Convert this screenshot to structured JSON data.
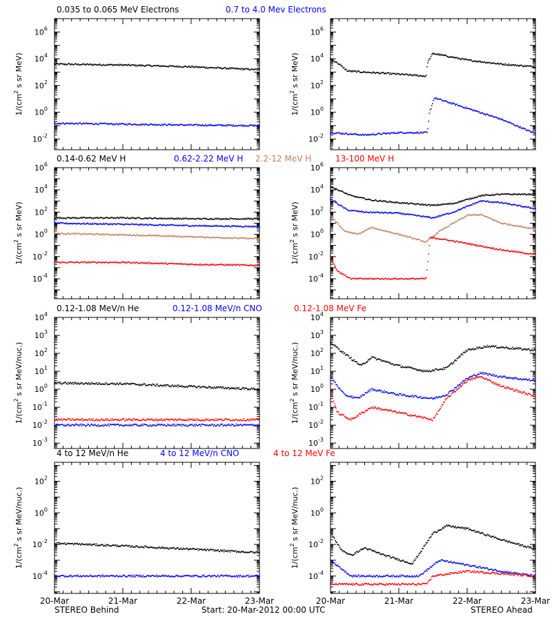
{
  "footer": {
    "left": "STEREO Behind",
    "center": "Start: 20-Mar-2012 00:00 UTC",
    "right": "STEREO Ahead"
  },
  "x_tick_labels": [
    "20-Mar",
    "21-Mar",
    "22-Mar",
    "23-Mar"
  ],
  "colors": {
    "black": "#000000",
    "blue": "#0000ff",
    "brown": "#c08060",
    "red": "#ff0000"
  },
  "rows": [
    {
      "titles": [
        {
          "text": "0.035 to 0.065 MeV Electrons",
          "color": "black"
        },
        {
          "text": "0.7 to 4.0 Mev Electrons",
          "color": "blue"
        }
      ],
      "ylabel_main": "1/(cm",
      "ylabel_sup": "2",
      "ylabel_tail": " s sr MeV)"
    },
    {
      "titles": [
        {
          "text": "0.14-0.62 MeV H",
          "color": "black"
        },
        {
          "text": "0.62-2.22 MeV H",
          "color": "blue"
        },
        {
          "text": "2.2-12 MeV H",
          "color": "brown"
        },
        {
          "text": "13-100 MeV H",
          "color": "red"
        }
      ],
      "ylabel_main": "1/(cm",
      "ylabel_sup": "2",
      "ylabel_tail": " s sr MeV)"
    },
    {
      "titles": [
        {
          "text": "0.12-1.08 MeV/n He",
          "color": "black"
        },
        {
          "text": "0.12-1.08 MeV/n CNO",
          "color": "blue"
        },
        {
          "text": "0.12-1.08 MeV Fe",
          "color": "red"
        }
      ],
      "ylabel_main": "1/(cm",
      "ylabel_sup": "2",
      "ylabel_tail": " s sr MeV/nuc.)"
    },
    {
      "titles": [
        {
          "text": "4 to 12 MeV/n He",
          "color": "black"
        },
        {
          "text": "4 to 12 MeV/n CNO",
          "color": "blue"
        },
        {
          "text": "4 to 12 MeV Fe",
          "color": "red"
        }
      ],
      "ylabel_main": "1/(cm",
      "ylabel_sup": "2",
      "ylabel_tail": " s sr MeV/nuc.)"
    }
  ],
  "chart_data": [
    {
      "type": "scatter",
      "panel": "electrons-behind",
      "y_scale": "log",
      "ylim_log10": [
        -2.8,
        7
      ],
      "y_tick_exponents": [
        -2,
        0,
        2,
        4,
        6
      ],
      "x": [
        "2012-03-20",
        "2012-03-23"
      ],
      "series": [
        {
          "name": "0.035 to 0.065 MeV Electrons",
          "color": "black",
          "points": [
            [
              0,
              4000
            ],
            [
              1,
              3400
            ],
            [
              2,
              2500
            ],
            [
              3,
              1500
            ]
          ]
        },
        {
          "name": "0.7 to 4.0 Mev Electrons",
          "color": "blue",
          "points": [
            [
              0,
              0.15
            ],
            [
              1,
              0.13
            ],
            [
              2,
              0.11
            ],
            [
              3,
              0.1
            ]
          ]
        }
      ]
    },
    {
      "type": "scatter",
      "panel": "electrons-ahead",
      "y_scale": "log",
      "ylim_log10": [
        -2.8,
        7
      ],
      "y_tick_exponents": [
        -2,
        0,
        2,
        4,
        6
      ],
      "x": [
        "2012-03-20",
        "2012-03-23"
      ],
      "series": [
        {
          "name": "0.035 to 0.065 MeV Electrons",
          "color": "black",
          "points": [
            [
              0,
              10000
            ],
            [
              0.1,
              5000
            ],
            [
              0.25,
              1200
            ],
            [
              0.5,
              1000
            ],
            [
              1,
              700
            ],
            [
              1.4,
              500
            ],
            [
              1.42,
              5000
            ],
            [
              1.5,
              25000
            ],
            [
              2,
              8000
            ],
            [
              2.5,
              4000
            ],
            [
              3,
              2500
            ]
          ]
        },
        {
          "name": "0.7 to 4.0 Mev Electrons",
          "color": "blue",
          "points": [
            [
              0,
              0.03
            ],
            [
              0.5,
              0.02
            ],
            [
              1,
              0.03
            ],
            [
              1.42,
              0.03
            ],
            [
              1.45,
              1
            ],
            [
              1.52,
              12
            ],
            [
              2,
              2
            ],
            [
              2.5,
              0.3
            ],
            [
              3,
              0.025
            ]
          ]
        }
      ]
    },
    {
      "type": "scatter",
      "panel": "protons-behind",
      "y_scale": "log",
      "ylim_log10": [
        -5.8,
        6
      ],
      "y_tick_exponents": [
        -4,
        -2,
        0,
        2,
        4,
        6
      ],
      "x": [
        "2012-03-20",
        "2012-03-23"
      ],
      "series": [
        {
          "name": "0.14-0.62 MeV H",
          "color": "black",
          "points": [
            [
              0,
              30
            ],
            [
              1,
              30
            ],
            [
              2,
              25
            ],
            [
              3,
              25
            ]
          ]
        },
        {
          "name": "0.62-2.22 MeV H",
          "color": "blue",
          "points": [
            [
              0,
              10
            ],
            [
              1,
              8
            ],
            [
              2,
              6
            ],
            [
              3,
              5
            ]
          ]
        },
        {
          "name": "2.2-12 MeV H",
          "color": "brown",
          "points": [
            [
              0,
              1.2
            ],
            [
              1,
              0.9
            ],
            [
              2,
              0.6
            ],
            [
              3,
              0.4
            ]
          ]
        },
        {
          "name": "13-100 MeV H",
          "color": "red",
          "points": [
            [
              0,
              0.003
            ],
            [
              1,
              0.003
            ],
            [
              2,
              0.002
            ],
            [
              3,
              0.0016
            ]
          ]
        }
      ]
    },
    {
      "type": "scatter",
      "panel": "protons-ahead",
      "y_scale": "log",
      "ylim_log10": [
        -5.8,
        6
      ],
      "y_tick_exponents": [
        -4,
        -2,
        0,
        2,
        4,
        6
      ],
      "x": [
        "2012-03-20",
        "2012-03-23"
      ],
      "series": [
        {
          "name": "0.14-0.62 MeV H",
          "color": "black",
          "points": [
            [
              0,
              20000
            ],
            [
              0.3,
              3000
            ],
            [
              0.6,
              1200
            ],
            [
              1,
              700
            ],
            [
              1.5,
              400
            ],
            [
              1.8,
              600
            ],
            [
              2.2,
              3000
            ],
            [
              2.5,
              4000
            ],
            [
              3,
              4000
            ]
          ]
        },
        {
          "name": "0.62-2.22 MeV H",
          "color": "blue",
          "points": [
            [
              0,
              1500
            ],
            [
              0.25,
              150
            ],
            [
              0.5,
              100
            ],
            [
              1,
              80
            ],
            [
              1.5,
              30
            ],
            [
              1.8,
              100
            ],
            [
              2.2,
              1000
            ],
            [
              2.5,
              700
            ],
            [
              3,
              200
            ]
          ]
        },
        {
          "name": "2.2-12 MeV H",
          "color": "brown",
          "points": [
            [
              0,
              50
            ],
            [
              0.2,
              2
            ],
            [
              0.4,
              1
            ],
            [
              0.6,
              4
            ],
            [
              1,
              1
            ],
            [
              1.4,
              0.2
            ],
            [
              1.6,
              2
            ],
            [
              2,
              50
            ],
            [
              2.2,
              60
            ],
            [
              2.5,
              10
            ],
            [
              3,
              3
            ]
          ]
        },
        {
          "name": "13-100 MeV H",
          "color": "red",
          "points": [
            [
              0,
              0.01
            ],
            [
              0.1,
              0.0005
            ],
            [
              0.3,
              0.0001
            ],
            [
              0.6,
              0.0001
            ],
            [
              1,
              0.0001
            ],
            [
              1.4,
              0.0001
            ],
            [
              1.46,
              0.5
            ],
            [
              1.6,
              0.4
            ],
            [
              2,
              0.15
            ],
            [
              2.5,
              0.04
            ],
            [
              3,
              0.015
            ]
          ]
        }
      ]
    },
    {
      "type": "scatter",
      "panel": "ions-low-behind",
      "y_scale": "log",
      "ylim_log10": [
        -3.3,
        4
      ],
      "y_tick_exponents": [
        -3,
        -2,
        -1,
        0,
        1,
        2,
        3,
        4
      ],
      "x": [
        "2012-03-20",
        "2012-03-23"
      ],
      "series": [
        {
          "name": "0.12-1.08 MeV/n He",
          "color": "black",
          "points": [
            [
              0,
              2.2
            ],
            [
              1,
              2
            ],
            [
              2,
              1.4
            ],
            [
              3,
              1
            ]
          ]
        },
        {
          "name": "0.12-1.08 MeV/n CNO",
          "color": "blue",
          "points": [
            [
              0,
              0.01
            ],
            [
              3,
              0.01
            ]
          ]
        },
        {
          "name": "0.12-1.08 MeV Fe",
          "color": "red",
          "points": [
            [
              0,
              0.02
            ],
            [
              3,
              0.02
            ]
          ]
        }
      ]
    },
    {
      "type": "scatter",
      "panel": "ions-low-ahead",
      "y_scale": "log",
      "ylim_log10": [
        -3.3,
        4
      ],
      "y_tick_exponents": [
        -3,
        -2,
        -1,
        0,
        1,
        2,
        3,
        4
      ],
      "x": [
        "2012-03-20",
        "2012-03-23"
      ],
      "series": [
        {
          "name": "0.12-1.08 MeV/n He",
          "color": "black",
          "points": [
            [
              0,
              400
            ],
            [
              0.2,
              100
            ],
            [
              0.45,
              20
            ],
            [
              0.6,
              60
            ],
            [
              1,
              20
            ],
            [
              1.4,
              10
            ],
            [
              1.7,
              15
            ],
            [
              2,
              150
            ],
            [
              2.3,
              250
            ],
            [
              3,
              150
            ]
          ]
        },
        {
          "name": "0.12-1.08 MeV/n CNO",
          "color": "blue",
          "points": [
            [
              0,
              5
            ],
            [
              0.2,
              0.5
            ],
            [
              0.4,
              0.3
            ],
            [
              0.6,
              1
            ],
            [
              1,
              0.5
            ],
            [
              1.5,
              0.3
            ],
            [
              1.7,
              0.5
            ],
            [
              2,
              4
            ],
            [
              2.2,
              8
            ],
            [
              2.5,
              5
            ],
            [
              3,
              3
            ]
          ]
        },
        {
          "name": "0.12-1.08 MeV Fe",
          "color": "red",
          "points": [
            [
              0,
              1
            ],
            [
              0.1,
              0.05
            ],
            [
              0.3,
              0.02
            ],
            [
              0.6,
              0.1
            ],
            [
              1,
              0.05
            ],
            [
              1.5,
              0.02
            ],
            [
              1.7,
              0.3
            ],
            [
              2,
              3
            ],
            [
              2.2,
              5
            ],
            [
              2.5,
              1.5
            ],
            [
              3,
              0.4
            ]
          ]
        }
      ]
    },
    {
      "type": "scatter",
      "panel": "ions-high-behind",
      "y_scale": "log",
      "ylim_log10": [
        -5.1,
        3.2
      ],
      "y_tick_exponents": [
        -4,
        -2,
        0,
        2
      ],
      "x": [
        "2012-03-20",
        "2012-03-23"
      ],
      "series": [
        {
          "name": "4 to 12 MeV/n He",
          "color": "black",
          "points": [
            [
              0,
              0.012
            ],
            [
              1,
              0.008
            ],
            [
              2,
              0.005
            ],
            [
              3,
              0.003
            ]
          ]
        },
        {
          "name": "4 to 12 MeV/n CNO",
          "color": "blue",
          "points": [
            [
              0,
              0.0001
            ],
            [
              3,
              0.0001
            ]
          ]
        },
        {
          "name": "4 to 12 MeV Fe",
          "color": "red",
          "points": []
        }
      ]
    },
    {
      "type": "scatter",
      "panel": "ions-high-ahead",
      "y_scale": "log",
      "ylim_log10": [
        -5.1,
        3.2
      ],
      "y_tick_exponents": [
        -4,
        -2,
        0,
        2
      ],
      "x": [
        "2012-03-20",
        "2012-03-23"
      ],
      "series": [
        {
          "name": "4 to 12 MeV/n He",
          "color": "black",
          "points": [
            [
              0,
              0.06
            ],
            [
              0.15,
              0.005
            ],
            [
              0.3,
              0.002
            ],
            [
              0.5,
              0.006
            ],
            [
              0.8,
              0.002
            ],
            [
              1.2,
              0.0006
            ],
            [
              1.5,
              0.05
            ],
            [
              1.7,
              0.15
            ],
            [
              2,
              0.1
            ],
            [
              2.5,
              0.02
            ],
            [
              3,
              0.005
            ]
          ]
        },
        {
          "name": "4 to 12 MeV/n CNO",
          "color": "blue",
          "points": [
            [
              0,
              0.001
            ],
            [
              0.3,
              0.0001
            ],
            [
              1.3,
              0.0001
            ],
            [
              1.6,
              0.001
            ],
            [
              2,
              0.0005
            ],
            [
              2.5,
              0.0002
            ],
            [
              3,
              0.0001
            ]
          ]
        },
        {
          "name": "4 to 12 MeV Fe",
          "color": "red",
          "points": [
            [
              0,
              3e-05
            ],
            [
              1.4,
              3e-05
            ],
            [
              1.5,
              0.0001
            ],
            [
              2,
              0.0002
            ],
            [
              3,
              0.0001
            ]
          ]
        }
      ]
    }
  ]
}
